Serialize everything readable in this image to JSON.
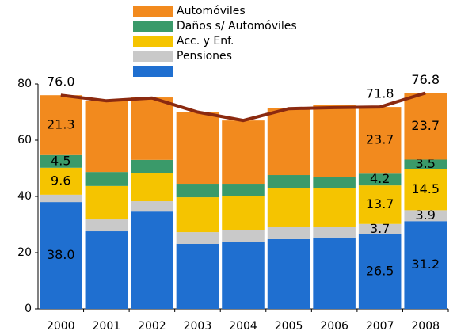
{
  "chart_data": {
    "type": "stacked_bar",
    "categories": [
      "2000",
      "2001",
      "2002",
      "2003",
      "2004",
      "2005",
      "2006",
      "2007",
      "2008"
    ],
    "ylim": [
      0,
      80
    ],
    "yticks": [
      0,
      20,
      40,
      60,
      80
    ],
    "series": [
      {
        "name": null,
        "color": "#1f6fd0",
        "values": [
          38.0,
          27.6,
          34.6,
          23.1,
          23.9,
          24.8,
          25.4,
          26.5,
          31.2
        ],
        "value_labels": [
          "38.0",
          null,
          null,
          null,
          null,
          null,
          null,
          "26.5",
          "31.2"
        ]
      },
      {
        "name": "Pensiones",
        "color": "#c9c9c9",
        "values": [
          2.6,
          4.2,
          3.7,
          4.2,
          4.0,
          4.5,
          3.9,
          3.7,
          3.9
        ],
        "value_labels": [
          null,
          null,
          null,
          null,
          null,
          null,
          null,
          "3.7",
          "3.9"
        ]
      },
      {
        "name": "Acc. y  Enf.",
        "color": "#f5c400",
        "values": [
          9.6,
          11.9,
          9.9,
          12.4,
          12.1,
          13.8,
          13.8,
          13.7,
          14.5
        ],
        "value_labels": [
          "9.6",
          null,
          null,
          null,
          null,
          null,
          null,
          "13.7",
          "14.5"
        ]
      },
      {
        "name": "Daños s/ Automóviles",
        "color": "#3a9a6a",
        "values": [
          4.5,
          5.0,
          4.8,
          4.8,
          4.5,
          4.5,
          3.7,
          4.2,
          3.5
        ],
        "value_labels": [
          "4.5",
          null,
          null,
          null,
          null,
          null,
          null,
          "4.2",
          "3.5"
        ]
      },
      {
        "name": "Automóviles",
        "color": "#f28a1e",
        "values": [
          21.3,
          25.3,
          22.2,
          25.6,
          22.5,
          23.9,
          25.6,
          23.7,
          23.7
        ],
        "value_labels": [
          "21.3",
          null,
          null,
          null,
          null,
          null,
          null,
          "23.7",
          "23.7"
        ]
      }
    ],
    "line": {
      "color": "#8b2a10",
      "values": [
        76.0,
        74.0,
        75.0,
        70.0,
        67.0,
        71.2,
        71.6,
        71.8,
        76.8
      ],
      "value_labels": [
        "76.0",
        null,
        null,
        null,
        null,
        null,
        null,
        "71.8",
        "76.8"
      ]
    }
  }
}
